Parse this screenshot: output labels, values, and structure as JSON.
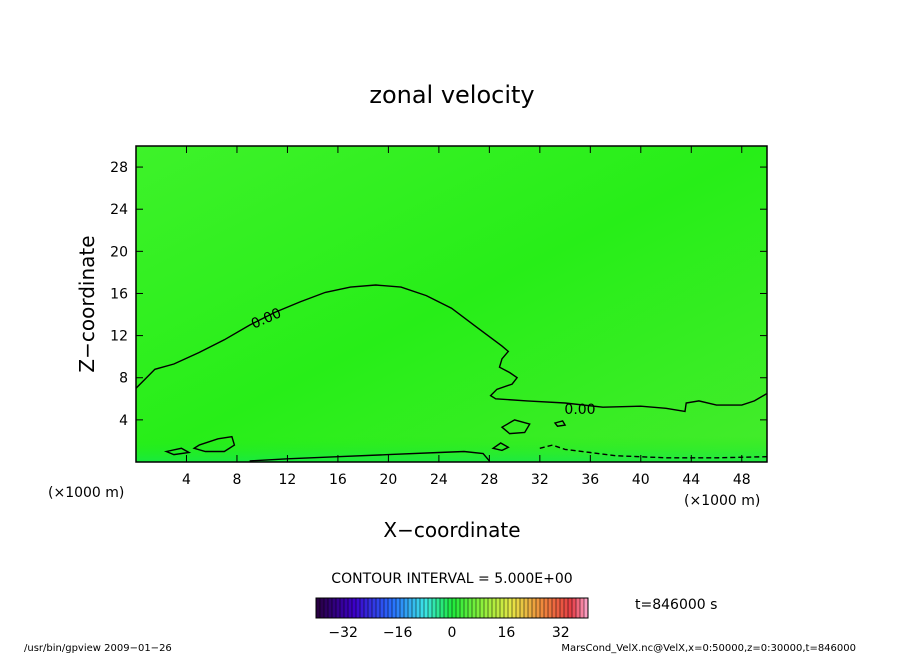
{
  "chart_data": {
    "type": "contour",
    "title": "zonal velocity",
    "xlabel": "X−coordinate",
    "ylabel": "Z−coordinate",
    "x_unit": "(×1000 m)",
    "y_unit": "(×1000 m)",
    "xlim": [
      0,
      50
    ],
    "ylim": [
      0,
      30
    ],
    "x_ticks": [
      4,
      8,
      12,
      16,
      20,
      24,
      28,
      32,
      36,
      40,
      44,
      48
    ],
    "y_ticks": [
      4,
      8,
      12,
      16,
      20,
      24,
      28
    ],
    "field_fill_color": "#22ee11",
    "contour_label_value": "0.00",
    "contour_interval_text": "CONTOUR INTERVAL = 5.000E+00",
    "time_text": "t=846000 s",
    "colorbar": {
      "ticks": [
        -32,
        -16,
        0,
        16,
        32
      ],
      "tick_labels": [
        "−32",
        "−16",
        "0",
        "16",
        "32"
      ],
      "range": [
        -40,
        40
      ]
    },
    "contour_zero": [
      [
        0,
        7.0
      ],
      [
        1.5,
        8.8
      ],
      [
        3,
        9.3
      ],
      [
        5,
        10.4
      ],
      [
        7,
        11.6
      ],
      [
        9,
        13.0
      ],
      [
        11,
        14.2
      ],
      [
        13,
        15.2
      ],
      [
        15,
        16.1
      ],
      [
        17,
        16.6
      ],
      [
        19,
        16.8
      ],
      [
        21,
        16.6
      ],
      [
        23,
        15.8
      ],
      [
        25,
        14.6
      ],
      [
        27,
        12.8
      ],
      [
        29,
        11.0
      ],
      [
        29.5,
        10.5
      ],
      [
        29.0,
        9.8
      ],
      [
        28.8,
        9.0
      ],
      [
        29.6,
        8.5
      ],
      [
        30.2,
        8.0
      ],
      [
        29.8,
        7.4
      ],
      [
        28.6,
        6.9
      ],
      [
        28.1,
        6.3
      ],
      [
        28.5,
        6.0
      ],
      [
        31,
        5.8
      ],
      [
        34,
        5.6
      ],
      [
        37,
        5.2
      ],
      [
        40,
        5.3
      ],
      [
        42,
        5.1
      ],
      [
        43.5,
        4.8
      ],
      [
        43.6,
        5.6
      ],
      [
        44.6,
        5.8
      ],
      [
        46,
        5.4
      ],
      [
        48,
        5.4
      ],
      [
        49,
        5.8
      ],
      [
        50,
        6.5
      ]
    ],
    "contour_lower_edge": [
      [
        9,
        0.1
      ],
      [
        12,
        0.3
      ],
      [
        16,
        0.5
      ],
      [
        20,
        0.7
      ],
      [
        24,
        0.9
      ],
      [
        26,
        1.0
      ],
      [
        27.5,
        0.8
      ],
      [
        28,
        0.1
      ]
    ],
    "contour_small_closed": [
      [
        [
          5,
          1.6
        ],
        [
          6.5,
          2.2
        ],
        [
          7.6,
          2.4
        ],
        [
          7.8,
          1.6
        ],
        [
          7.0,
          1.0
        ],
        [
          5.5,
          1.0
        ],
        [
          4.6,
          1.3
        ],
        [
          5,
          1.6
        ]
      ],
      [
        [
          2.4,
          1.0
        ],
        [
          3.6,
          1.3
        ],
        [
          4.2,
          0.9
        ],
        [
          3.0,
          0.7
        ],
        [
          2.4,
          1.0
        ]
      ],
      [
        [
          28.3,
          1.3
        ],
        [
          28.9,
          1.8
        ],
        [
          29.5,
          1.4
        ],
        [
          29.0,
          1.1
        ],
        [
          28.3,
          1.3
        ]
      ],
      [
        [
          29.0,
          3.3
        ],
        [
          30.0,
          4.0
        ],
        [
          31.2,
          3.6
        ],
        [
          30.8,
          2.8
        ],
        [
          29.6,
          2.7
        ],
        [
          29.0,
          3.3
        ]
      ],
      [
        [
          33.2,
          3.7
        ],
        [
          33.8,
          3.9
        ],
        [
          34.0,
          3.5
        ],
        [
          33.4,
          3.4
        ],
        [
          33.2,
          3.7
        ]
      ]
    ],
    "contour_dashed": [
      [
        32,
        1.3
      ],
      [
        33,
        1.6
      ],
      [
        34,
        1.2
      ],
      [
        36,
        0.9
      ],
      [
        38,
        0.6
      ],
      [
        42,
        0.4
      ],
      [
        46,
        0.4
      ],
      [
        50,
        0.5
      ]
    ]
  },
  "footer": {
    "left": "/usr/bin/gpview  2009−01−26",
    "right": "MarsCond_VelX.nc@VelX,x=0:50000,z=0:30000,t=846000"
  }
}
